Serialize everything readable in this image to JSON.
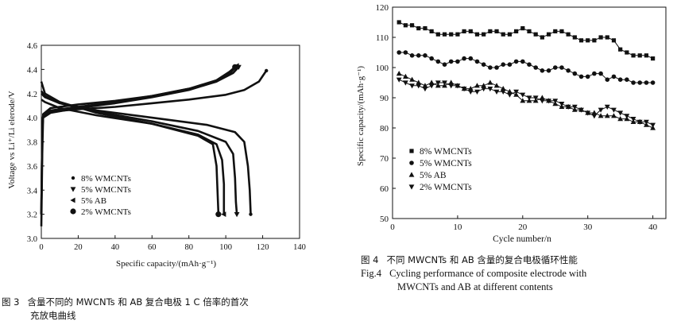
{
  "fig3": {
    "caption_number": "图 3",
    "caption_line1": "含量不同的 MWCNTs 和 AB 复合电极 1 C 倍率的首次",
    "caption_line2": "充放电曲线",
    "chart_data": {
      "type": "line",
      "xlabel": "Specific capacity/(mAh·g⁻¹)",
      "ylabel": "Voltage vs Li⁺/Li elerode/V",
      "xlim": [
        0,
        140
      ],
      "ylim": [
        3.0,
        4.6
      ],
      "xticks": [
        0,
        20,
        40,
        60,
        80,
        100,
        120,
        140
      ],
      "yticks": [
        3.0,
        3.2,
        3.4,
        3.6,
        3.8,
        4.0,
        4.2,
        4.4,
        4.6
      ],
      "legend_position": "lower-left",
      "series": [
        {
          "name": "8% WMCNTs",
          "marker": "circle-small",
          "charge": [
            [
              0,
              3.2
            ],
            [
              0.5,
              3.9
            ],
            [
              1,
              4.02
            ],
            [
              5,
              4.05
            ],
            [
              20,
              4.07
            ],
            [
              40,
              4.09
            ],
            [
              60,
              4.12
            ],
            [
              80,
              4.15
            ],
            [
              100,
              4.19
            ],
            [
              110,
              4.23
            ],
            [
              118,
              4.3
            ],
            [
              122,
              4.39
            ]
          ],
          "discharge": [
            [
              0,
              4.22
            ],
            [
              2,
              4.18
            ],
            [
              10,
              4.12
            ],
            [
              30,
              4.06
            ],
            [
              60,
              4.0
            ],
            [
              90,
              3.94
            ],
            [
              105,
              3.88
            ],
            [
              110,
              3.8
            ],
            [
              112,
              3.6
            ],
            [
              113,
              3.4
            ],
            [
              113.5,
              3.2
            ]
          ]
        },
        {
          "name": "5% WMCNTs",
          "marker": "triangle-down",
          "charge": [
            [
              0,
              3.2
            ],
            [
              0.5,
              3.88
            ],
            [
              1,
              4.03
            ],
            [
              5,
              4.08
            ],
            [
              20,
              4.11
            ],
            [
              40,
              4.14
            ],
            [
              60,
              4.18
            ],
            [
              80,
              4.24
            ],
            [
              95,
              4.3
            ],
            [
              104,
              4.37
            ],
            [
              107,
              4.42
            ]
          ],
          "discharge": [
            [
              0,
              4.2
            ],
            [
              2,
              4.17
            ],
            [
              10,
              4.12
            ],
            [
              30,
              4.05
            ],
            [
              60,
              3.97
            ],
            [
              85,
              3.89
            ],
            [
              100,
              3.8
            ],
            [
              104,
              3.7
            ],
            [
              105,
              3.5
            ],
            [
              105.5,
              3.3
            ],
            [
              106,
              3.2
            ]
          ]
        },
        {
          "name": "5% AB",
          "marker": "triangle-left",
          "charge": [
            [
              0,
              3.2
            ],
            [
              0.5,
              3.9
            ],
            [
              1,
              4.0
            ],
            [
              5,
              4.04
            ],
            [
              20,
              4.08
            ],
            [
              40,
              4.12
            ],
            [
              60,
              4.17
            ],
            [
              80,
              4.23
            ],
            [
              95,
              4.3
            ],
            [
              103,
              4.38
            ],
            [
              106,
              4.43
            ]
          ],
          "discharge": [
            [
              0,
              4.15
            ],
            [
              2,
              4.13
            ],
            [
              10,
              4.08
            ],
            [
              30,
              4.02
            ],
            [
              60,
              3.95
            ],
            [
              85,
              3.86
            ],
            [
              95,
              3.78
            ],
            [
              98,
              3.65
            ],
            [
              99,
              3.45
            ],
            [
              99,
              3.2
            ]
          ]
        },
        {
          "name": "2% WMCNTs",
          "marker": "circle-large",
          "charge": [
            [
              0,
              3.1
            ],
            [
              0.5,
              3.7
            ],
            [
              1,
              4.02
            ],
            [
              5,
              4.06
            ],
            [
              20,
              4.09
            ],
            [
              40,
              4.13
            ],
            [
              60,
              4.18
            ],
            [
              80,
              4.24
            ],
            [
              95,
              4.31
            ],
            [
              102,
              4.38
            ],
            [
              105,
              4.42
            ]
          ],
          "discharge": [
            [
              0,
              4.3
            ],
            [
              2,
              4.2
            ],
            [
              10,
              4.13
            ],
            [
              30,
              4.04
            ],
            [
              60,
              3.95
            ],
            [
              85,
              3.85
            ],
            [
              93,
              3.78
            ],
            [
              95,
              3.6
            ],
            [
              95.5,
              3.4
            ],
            [
              96,
              3.2
            ]
          ]
        }
      ]
    }
  },
  "fig4": {
    "caption_number": "图 4",
    "caption_cn": "不同 MWCNTs 和 AB 含量的复合电极循环性能",
    "caption_en_number": "Fig.4",
    "caption_en_line1": "Cycling performance of composite electrode with",
    "caption_en_line2": "MWCNTs and AB at different contents",
    "chart_data": {
      "type": "scatter",
      "xlabel": "Cycle number/n",
      "ylabel": "Specific capacity/(mAh·g⁻¹)",
      "xlim": [
        0,
        42
      ],
      "ylim": [
        50,
        120
      ],
      "xticks": [
        0,
        10,
        20,
        30,
        40
      ],
      "yticks": [
        50,
        60,
        70,
        80,
        90,
        100,
        110,
        120
      ],
      "legend_position": "lower-left",
      "x": [
        1,
        2,
        3,
        4,
        5,
        6,
        7,
        8,
        9,
        10,
        11,
        12,
        13,
        14,
        15,
        16,
        17,
        18,
        19,
        20,
        21,
        22,
        23,
        24,
        25,
        26,
        27,
        28,
        29,
        30,
        31,
        32,
        33,
        34,
        35,
        36,
        37,
        38,
        39,
        40
      ],
      "series": [
        {
          "name": "8% WMCNTs",
          "marker": "square",
          "values": [
            115,
            114,
            114,
            113,
            113,
            112,
            111,
            111,
            111,
            111,
            112,
            112,
            111,
            111,
            112,
            112,
            111,
            111,
            112,
            113,
            112,
            111,
            110,
            111,
            112,
            112,
            111,
            110,
            109,
            109,
            109,
            110,
            110,
            109,
            106,
            105,
            104,
            104,
            104,
            103
          ]
        },
        {
          "name": "5% WMCNTs",
          "marker": "circle",
          "values": [
            105,
            105,
            104,
            104,
            104,
            103,
            102,
            101,
            102,
            102,
            103,
            103,
            102,
            101,
            100,
            100,
            101,
            101,
            102,
            102,
            101,
            100,
            99,
            99,
            100,
            100,
            99,
            98,
            97,
            97,
            98,
            98,
            96,
            97,
            96,
            96,
            95,
            95,
            95,
            95
          ]
        },
        {
          "name": "5% AB",
          "marker": "triangle-up",
          "values": [
            98,
            97,
            96,
            95,
            94,
            95,
            94,
            94,
            95,
            94,
            93,
            93,
            94,
            94,
            95,
            94,
            93,
            92,
            91,
            89,
            89,
            89,
            90,
            89,
            88,
            87,
            87,
            86,
            86,
            85,
            85,
            84,
            84,
            84,
            83,
            83,
            82,
            82,
            81,
            80
          ]
        },
        {
          "name": "2% WMCNTs",
          "marker": "triangle-down",
          "values": [
            96,
            95,
            94,
            94,
            93,
            94,
            95,
            95,
            94,
            94,
            93,
            92,
            92,
            93,
            93,
            92,
            92,
            91,
            92,
            91,
            90,
            90,
            89,
            89,
            89,
            88,
            87,
            87,
            86,
            85,
            84,
            86,
            87,
            86,
            85,
            84,
            83,
            82,
            82,
            81
          ]
        }
      ]
    }
  }
}
